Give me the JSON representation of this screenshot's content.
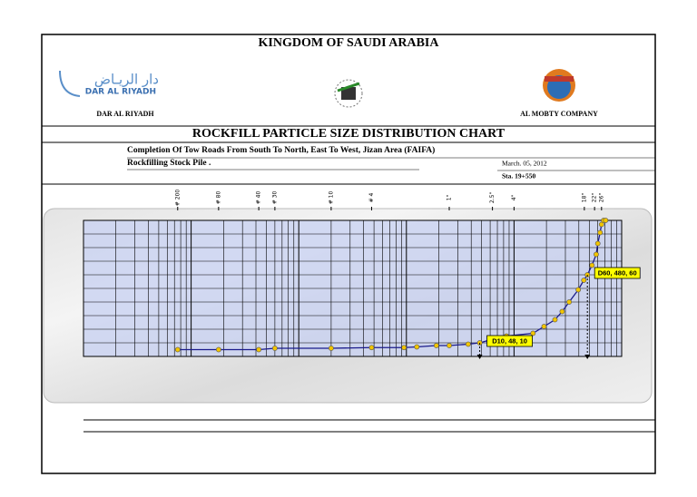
{
  "header": {
    "title": "KINGDOM OF SAUDI ARABIA",
    "left_logo_arabic": "دار الريـاض",
    "left_logo_latin": "DAR AL RIYADH",
    "left_label": "DAR AL RIYADH",
    "right_label": "AL MOBTY COMPANY"
  },
  "sheet": {
    "title": "ROCKFILL PARTICLE SIZE DISTRIBUTION CHART",
    "project": "Completion Of Tow Roads From South To North, East To West, Jizan Area (FAIFA)",
    "item": "Rockfilling  Stock Pile .",
    "date": "March. 05, 2012",
    "station": "Sta. 19+550"
  },
  "chart_data": {
    "type": "line",
    "log_x": true,
    "color": "#1a1a8a",
    "marker_color": "#f2c500",
    "xlim": [
      0.01,
      1000
    ],
    "ylim": [
      0,
      100
    ],
    "xticks": [
      {
        "value": 0.075,
        "label": "# 200"
      },
      {
        "value": 0.18,
        "label": "# 80"
      },
      {
        "value": 0.425,
        "label": "# 40"
      },
      {
        "value": 0.6,
        "label": "# 30"
      },
      {
        "value": 2,
        "label": "# 10"
      },
      {
        "value": 4.75,
        "label": "# 4"
      },
      {
        "value": 25,
        "label": "1\""
      },
      {
        "value": 63,
        "label": "2.5\""
      },
      {
        "value": 100,
        "label": "4\""
      },
      {
        "value": 450,
        "label": "18\""
      },
      {
        "value": 560,
        "label": "22\""
      },
      {
        "value": 650,
        "label": "26\""
      }
    ],
    "ygrid": [
      0,
      10,
      20,
      30,
      40,
      50,
      60,
      70,
      80,
      90,
      100
    ],
    "x": [
      0.075,
      0.18,
      0.425,
      0.6,
      2,
      4.75,
      9.5,
      12.5,
      19,
      25,
      37.5,
      48,
      63,
      85,
      150,
      190,
      240,
      280,
      325,
      395,
      445,
      480,
      530,
      580,
      600,
      630,
      650,
      680,
      710
    ],
    "values": [
      5,
      5,
      5,
      6,
      6,
      6.5,
      6.5,
      7,
      8,
      8,
      9,
      10,
      12.6,
      15,
      17,
      22,
      27,
      33,
      40,
      49,
      56,
      60,
      67,
      75,
      83,
      91,
      97,
      100,
      100
    ],
    "annotations": [
      {
        "text": "D10, 48, 10",
        "x": 48,
        "y": 10
      },
      {
        "text": "D60, 480, 60",
        "x": 480,
        "y": 60
      }
    ]
  }
}
